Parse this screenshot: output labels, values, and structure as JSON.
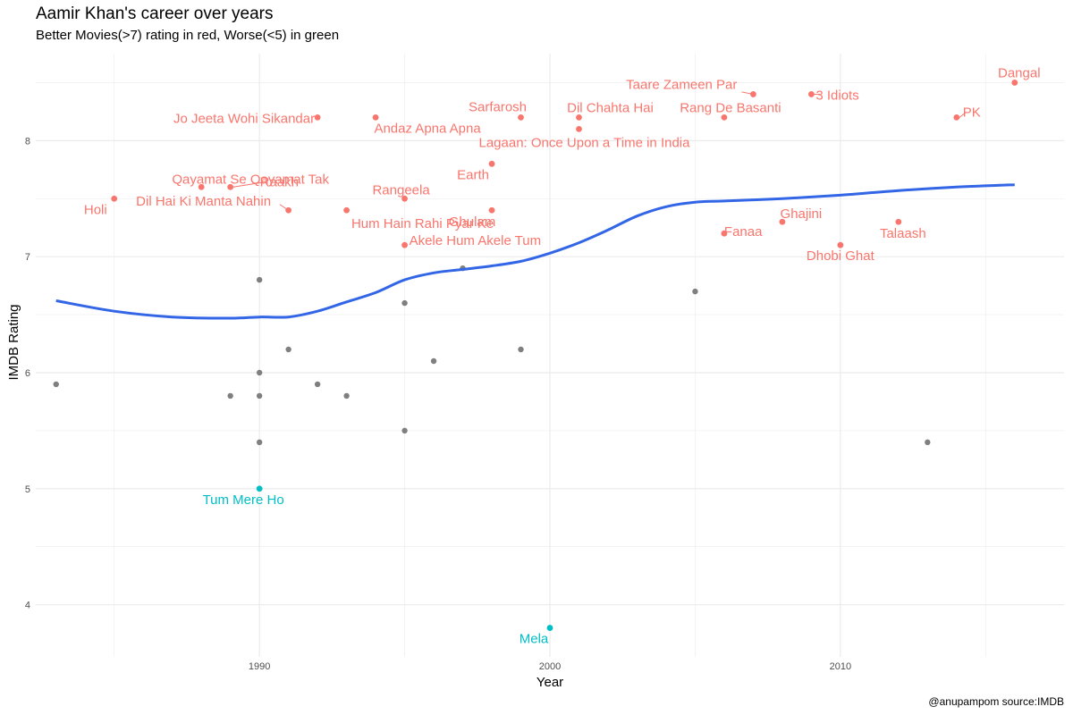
{
  "header": {
    "title": "Aamir Khan's career over years",
    "subtitle": "Better Movies(>7) rating in red, Worse(<5) in green",
    "caption": "@anupampom source:IMDB"
  },
  "colors": {
    "good": "#F8766D",
    "bad": "#00BFC4",
    "neutral": "#7f7f7f",
    "trend": "#3366E6",
    "grid": "#ebebeb"
  },
  "chart_data": {
    "type": "scatter",
    "title": "Aamir Khan's career over years",
    "subtitle": "Better Movies(>7) rating in red, Worse(<5) in green",
    "xlabel": "Year",
    "ylabel": "IMDB Rating",
    "xlim": [
      1982.3,
      2017.7
    ],
    "ylim": [
      3.55,
      8.75
    ],
    "x_ticks": [
      1990,
      2000,
      2010
    ],
    "y_ticks": [
      4,
      5,
      6,
      7,
      8
    ],
    "grid": true,
    "labeled_points": [
      {
        "name": "Holi",
        "year": 1985,
        "rating": 7.5,
        "group": "good"
      },
      {
        "name": "Qayamat Se Qayamat Tak",
        "year": 1988,
        "rating": 7.6,
        "group": "good"
      },
      {
        "name": "Raakh",
        "year": 1989,
        "rating": 7.6,
        "group": "good"
      },
      {
        "name": "Dil Hai Ki Manta Nahin",
        "year": 1991,
        "rating": 7.4,
        "group": "good"
      },
      {
        "name": "Jo Jeeta Wohi Sikandar",
        "year": 1992,
        "rating": 8.2,
        "group": "good"
      },
      {
        "name": "Hum Hain Rahi Pyar Ke",
        "year": 1993,
        "rating": 7.4,
        "group": "good"
      },
      {
        "name": "Andaz Apna Apna",
        "year": 1994,
        "rating": 8.2,
        "group": "good"
      },
      {
        "name": "Rangeela",
        "year": 1995,
        "rating": 7.5,
        "group": "good"
      },
      {
        "name": "Akele Hum Akele Tum",
        "year": 1995,
        "rating": 7.1,
        "group": "good"
      },
      {
        "name": "Earth",
        "year": 1998,
        "rating": 7.8,
        "group": "good"
      },
      {
        "name": "Ghulam",
        "year": 1998,
        "rating": 7.4,
        "group": "good"
      },
      {
        "name": "Sarfarosh",
        "year": 1999,
        "rating": 8.2,
        "group": "good"
      },
      {
        "name": "Dil Chahta Hai",
        "year": 2001,
        "rating": 8.2,
        "group": "good"
      },
      {
        "name": "Lagaan: Once Upon a Time in India",
        "year": 2001,
        "rating": 8.1,
        "group": "good"
      },
      {
        "name": "Fanaa",
        "year": 2006,
        "rating": 7.2,
        "group": "good"
      },
      {
        "name": "Rang De Basanti",
        "year": 2006,
        "rating": 8.2,
        "group": "good"
      },
      {
        "name": "Taare Zameen Par",
        "year": 2007,
        "rating": 8.4,
        "group": "good"
      },
      {
        "name": "Ghajini",
        "year": 2008,
        "rating": 7.3,
        "group": "good"
      },
      {
        "name": "3 Idiots",
        "year": 2009,
        "rating": 8.4,
        "group": "good"
      },
      {
        "name": "Dhobi Ghat",
        "year": 2010,
        "rating": 7.1,
        "group": "good"
      },
      {
        "name": "Talaash",
        "year": 2012,
        "rating": 7.3,
        "group": "good"
      },
      {
        "name": "PK",
        "year": 2014,
        "rating": 8.2,
        "group": "good"
      },
      {
        "name": "Dangal",
        "year": 2016,
        "rating": 8.5,
        "group": "good"
      },
      {
        "name": "Tum Mere Ho",
        "year": 1990,
        "rating": 5.0,
        "group": "bad"
      },
      {
        "name": "Mela",
        "year": 2000,
        "rating": 3.8,
        "group": "bad"
      }
    ],
    "other_points": [
      {
        "year": 1983,
        "rating": 5.9
      },
      {
        "year": 1989,
        "rating": 5.8
      },
      {
        "year": 1990,
        "rating": 6.8
      },
      {
        "year": 1990,
        "rating": 6.0
      },
      {
        "year": 1990,
        "rating": 5.8
      },
      {
        "year": 1990,
        "rating": 5.4
      },
      {
        "year": 1991,
        "rating": 6.2
      },
      {
        "year": 1992,
        "rating": 5.9
      },
      {
        "year": 1993,
        "rating": 5.8
      },
      {
        "year": 1995,
        "rating": 6.6
      },
      {
        "year": 1995,
        "rating": 5.5
      },
      {
        "year": 1996,
        "rating": 6.1
      },
      {
        "year": 1997,
        "rating": 6.9
      },
      {
        "year": 1999,
        "rating": 6.2
      },
      {
        "year": 2005,
        "rating": 6.7
      },
      {
        "year": 2013,
        "rating": 5.4
      }
    ],
    "trend_line": {
      "type": "smooth",
      "x": [
        1983,
        1985,
        1987,
        1989,
        1990,
        1991,
        1992,
        1993,
        1994,
        1995,
        1996,
        1997,
        1998,
        1999,
        2000,
        2001,
        2002,
        2003,
        2004,
        2005,
        2006,
        2008,
        2010,
        2012,
        2014,
        2016
      ],
      "y": [
        6.62,
        6.53,
        6.48,
        6.47,
        6.48,
        6.48,
        6.53,
        6.61,
        6.69,
        6.8,
        6.86,
        6.89,
        6.92,
        6.96,
        7.03,
        7.12,
        7.23,
        7.35,
        7.43,
        7.47,
        7.48,
        7.5,
        7.53,
        7.57,
        7.6,
        7.62
      ]
    }
  }
}
